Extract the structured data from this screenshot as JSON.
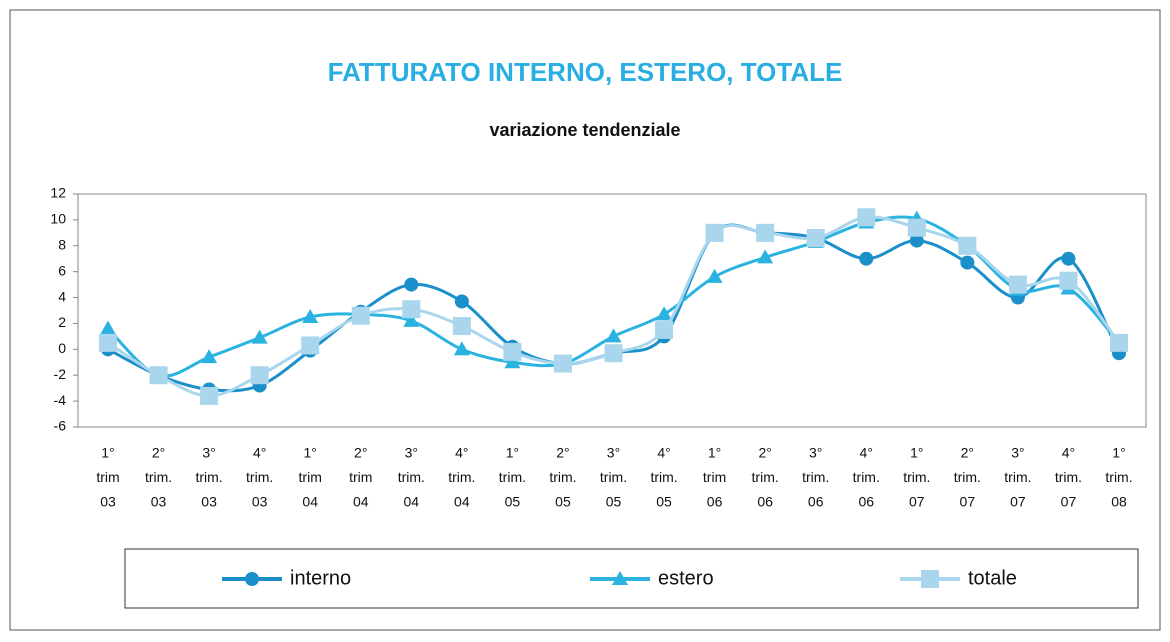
{
  "chart_data": {
    "type": "line",
    "title": "FATTURATO INTERNO, ESTERO, TOTALE",
    "subtitle": "variazione tendenziale",
    "categories": [
      [
        "1°",
        "trim",
        "03"
      ],
      [
        "2°",
        "trim.",
        "03"
      ],
      [
        "3°",
        "trim.",
        "03"
      ],
      [
        "4°",
        "trim.",
        "03"
      ],
      [
        "1°",
        "trim",
        "04"
      ],
      [
        "2°",
        "trim",
        "04"
      ],
      [
        "3°",
        "trim.",
        "04"
      ],
      [
        "4°",
        "trim.",
        "04"
      ],
      [
        "1°",
        "trim.",
        "05"
      ],
      [
        "2°",
        "trim.",
        "05"
      ],
      [
        "3°",
        "trim.",
        "05"
      ],
      [
        "4°",
        "trim.",
        "05"
      ],
      [
        "1°",
        "trim",
        "06"
      ],
      [
        "2°",
        "trim.",
        "06"
      ],
      [
        "3°",
        "trim.",
        "06"
      ],
      [
        "4°",
        "trim.",
        "06"
      ],
      [
        "1°",
        "trim.",
        "07"
      ],
      [
        "2°",
        "trim.",
        "07"
      ],
      [
        "3°",
        "trim.",
        "07"
      ],
      [
        "4°",
        "trim.",
        "07"
      ],
      [
        "1°",
        "trim.",
        "08"
      ]
    ],
    "series": [
      {
        "name": "interno",
        "color": "#1a8fca",
        "marker": "circle",
        "values": [
          0.0,
          -2.0,
          -3.1,
          -2.8,
          -0.1,
          2.9,
          5.0,
          3.7,
          0.2,
          -1.1,
          -0.3,
          1.0,
          9.0,
          9.0,
          8.6,
          7.0,
          8.4,
          6.7,
          4.0,
          7.0,
          -0.3
        ]
      },
      {
        "name": "estero",
        "color": "#2ab3e0",
        "marker": "triangle",
        "values": [
          1.6,
          -2.0,
          -0.6,
          0.9,
          2.5,
          2.7,
          2.2,
          0.0,
          -1.0,
          -1.1,
          1.0,
          2.7,
          5.6,
          7.1,
          8.3,
          9.8,
          10.1,
          8.0,
          4.6,
          4.7,
          0.5
        ]
      },
      {
        "name": "totale",
        "color": "#a9d6ec",
        "marker": "square",
        "values": [
          0.5,
          -2.0,
          -3.6,
          -2.0,
          0.3,
          2.6,
          3.1,
          1.8,
          -0.2,
          -1.1,
          -0.3,
          1.5,
          9.0,
          9.0,
          8.6,
          10.2,
          9.4,
          8.0,
          5.0,
          5.3,
          0.5
        ]
      }
    ],
    "ylim": [
      -6,
      12
    ],
    "yticks": [
      -6,
      -4,
      -2,
      0,
      2,
      4,
      6,
      8,
      10,
      12
    ],
    "smooth": true,
    "legend": "bottom"
  }
}
